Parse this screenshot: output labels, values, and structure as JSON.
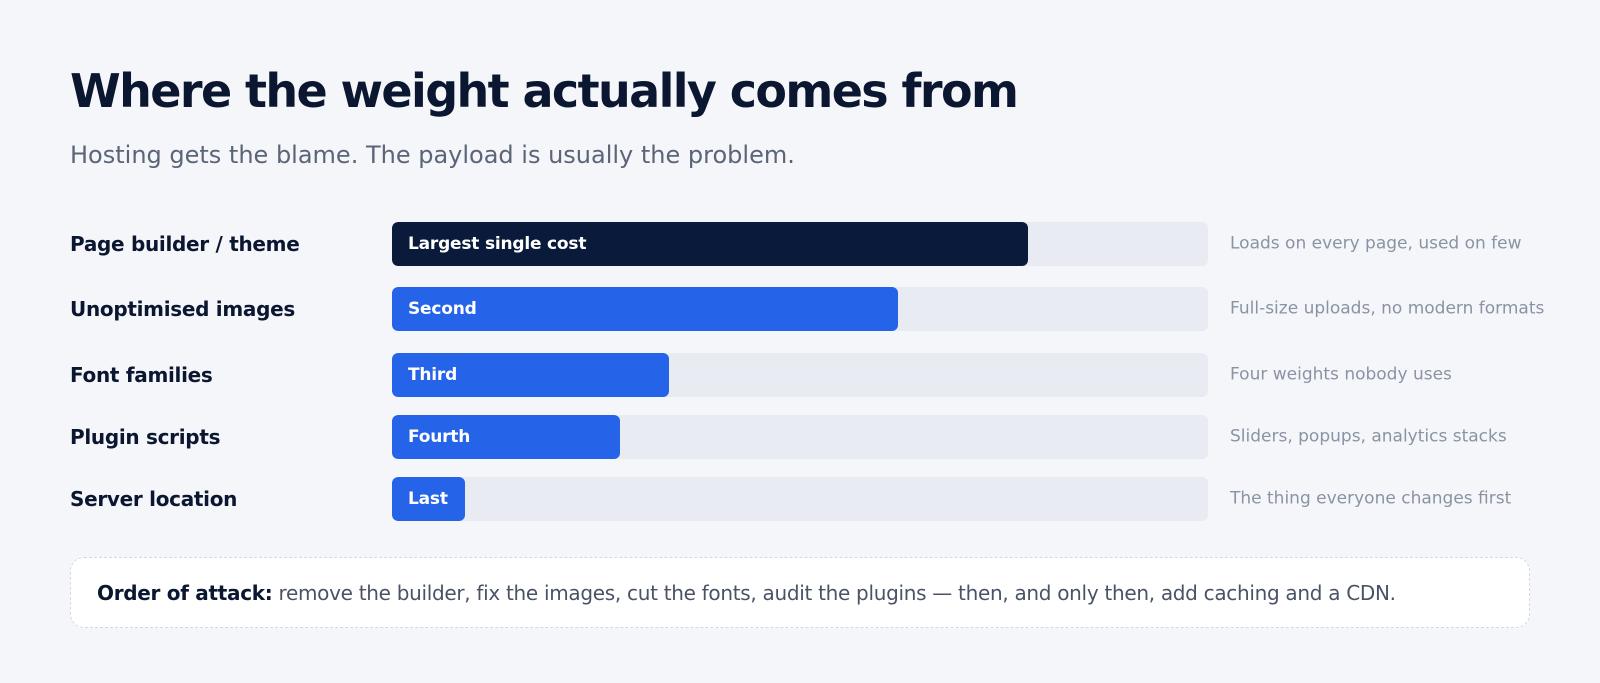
{
  "title": "Where the weight actually comes from",
  "subtitle": "Hosting gets the blame. The payload is usually the problem.",
  "colors": {
    "background": "#f5f6fa",
    "track": "#e8ebf2",
    "primary_bar": "#0a1a3a",
    "secondary_bar": "#2563e8",
    "text_dark": "#0b1730",
    "text_muted": "#8a93a4"
  },
  "chart_data": {
    "type": "bar",
    "orientation": "horizontal",
    "title": "Where the weight actually comes from",
    "subtitle": "Hosting gets the blame. The payload is usually the problem.",
    "categories": [
      "Page builder / theme",
      "Unoptimised images",
      "Font families",
      "Plugin scripts",
      "Server location"
    ],
    "values": [
      78,
      62,
      34,
      28,
      9
    ],
    "xlim": [
      0,
      100
    ],
    "axis_visible": false,
    "grid": false,
    "bar_labels": [
      "Largest single cost",
      "Second",
      "Third",
      "Fourth",
      "Last"
    ],
    "annotations": [
      "Loads on every page, used on few",
      "Full-size uploads, no modern formats",
      "Four weights nobody uses",
      "Sliders, popups, analytics stacks",
      "The thing everyone changes first"
    ],
    "highlight_index": 0
  },
  "callout": {
    "label": "Order of attack:",
    "text": " remove the builder, fix the images, cut the fonts, audit the plugins — then, and only then, add caching and a CDN."
  }
}
